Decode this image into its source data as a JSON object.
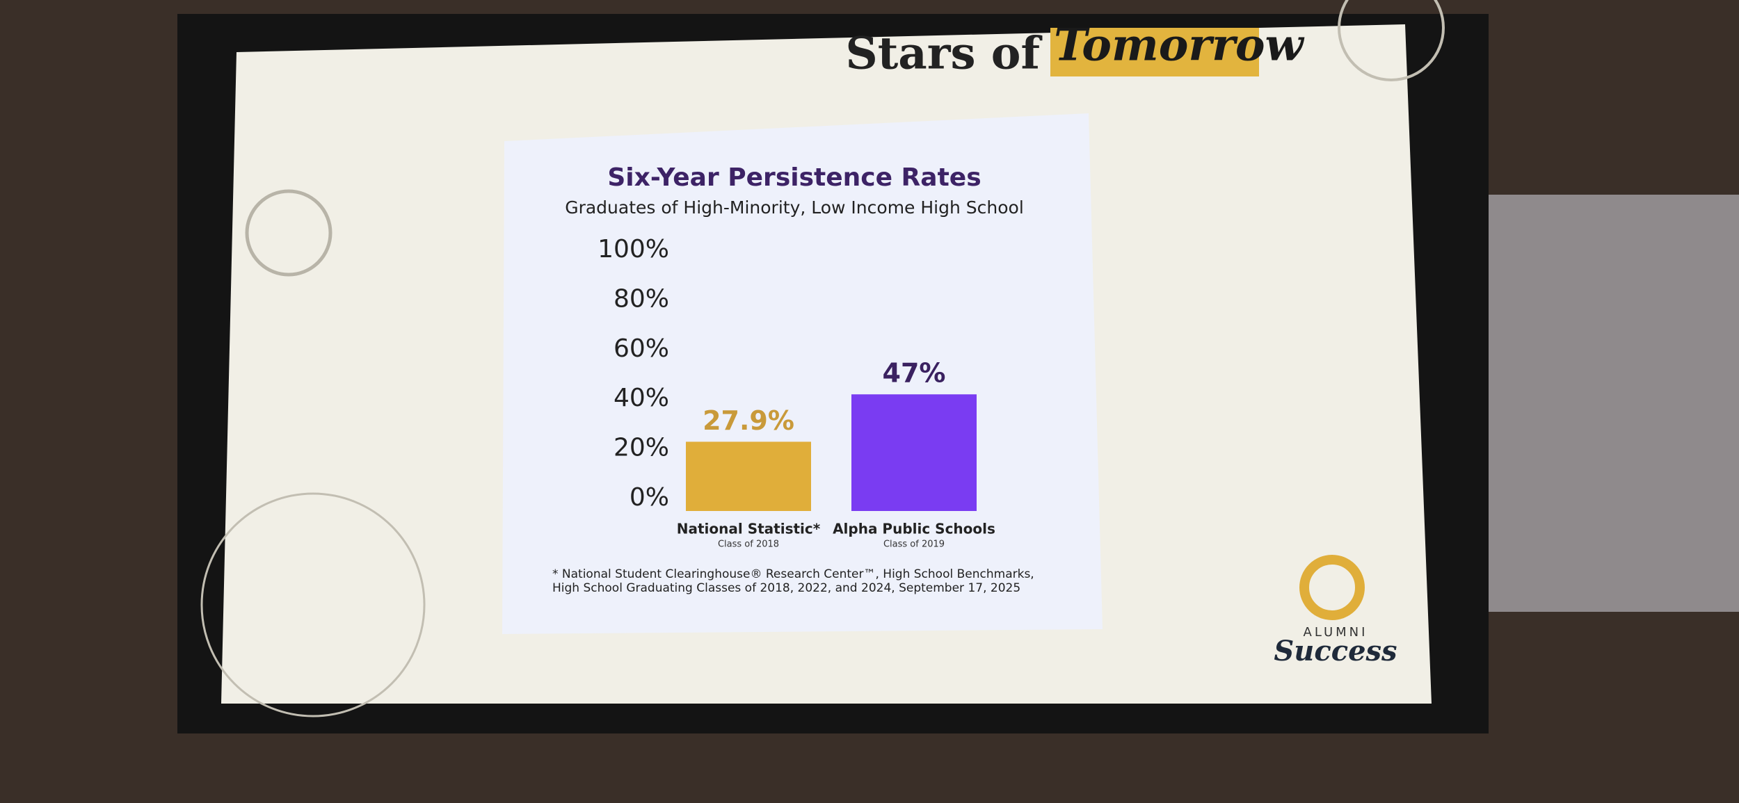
{
  "header": {
    "title_plain": "Stars of",
    "title_script": "Tomorrow"
  },
  "logo": {
    "line1": "ALUMNI",
    "line2": "Success"
  },
  "chart_data": {
    "type": "bar",
    "title": "Six-Year Persistence Rates",
    "subtitle": "Graduates of High-Minority, Low Income High School",
    "categories": [
      "National Statistic*",
      "Alpha Public Schools"
    ],
    "category_notes": [
      "Class of 2018",
      "Class of 2019"
    ],
    "values": [
      27.9,
      47
    ],
    "value_labels": [
      "27.9%",
      "47%"
    ],
    "colors": [
      "#e0ae3a",
      "#7a3cf2"
    ],
    "value_label_colors": [
      "#c99a3a",
      "#3a2160"
    ],
    "ylim": [
      0,
      100
    ],
    "yticks": [
      {
        "value": 0,
        "label": "0%"
      },
      {
        "value": 20,
        "label": "20%"
      },
      {
        "value": 40,
        "label": "40%"
      },
      {
        "value": 60,
        "label": "60%"
      },
      {
        "value": 80,
        "label": "80%"
      },
      {
        "value": 100,
        "label": "100%"
      }
    ],
    "grid": false,
    "footnote": [
      "* National Student Clearinghouse® Research Center™, High School Benchmarks,",
      "High School Graduating Classes of 2018, 2022, and 2024, September 17, 2025"
    ]
  }
}
